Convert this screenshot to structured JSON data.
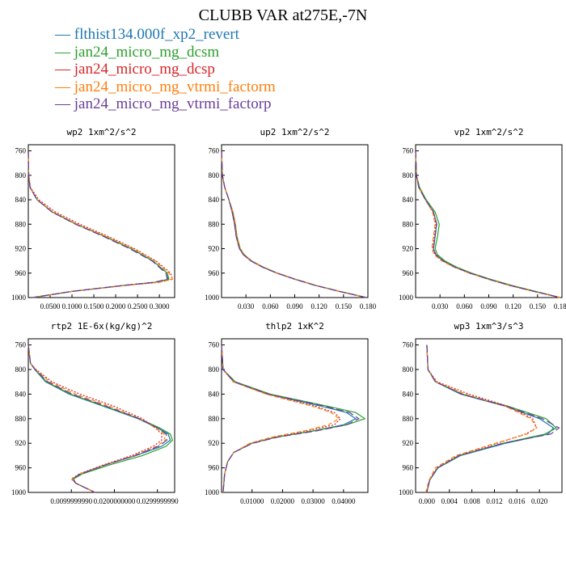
{
  "title": "CLUBB VAR at275E,-7N",
  "legend": [
    {
      "label": "flthist134.000f_xp2_revert",
      "color": "#1f77b4",
      "dash": "solid"
    },
    {
      "label": "jan24_micro_mg_dcsm",
      "color": "#2ca02c",
      "dash": "solid"
    },
    {
      "label": "jan24_micro_mg_dcsp",
      "color": "#d62728",
      "dash": "dotted"
    },
    {
      "label": "jan24_micro_mg_vtrmi_factorm",
      "color": "#ff7f0e",
      "dash": "dashed"
    },
    {
      "label": "jan24_micro_mg_vtrmi_factorp",
      "color": "#6a3d9a",
      "dash": "longdash"
    }
  ],
  "chart_data": [
    {
      "type": "line",
      "title": "wp2  1xm^2/s^2",
      "xlim": [
        0,
        0.335
      ],
      "ylim": [
        1000,
        750
      ],
      "y_reversed": true,
      "xticks": [
        0.05,
        0.1,
        0.15,
        0.2,
        0.25,
        0.3
      ],
      "xtick_labels": [
        "0.0500",
        "0.1000",
        "0.1500",
        "0.2000",
        "0.2500",
        "0.3000"
      ],
      "yticks": [
        760,
        800,
        840,
        880,
        920,
        960,
        1000
      ],
      "y": [
        760,
        800,
        820,
        840,
        860,
        880,
        900,
        920,
        940,
        960,
        970,
        975,
        980,
        990,
        1000
      ],
      "series": [
        {
          "values": [
            0,
            0.001,
            0.004,
            0.02,
            0.055,
            0.11,
            0.175,
            0.235,
            0.285,
            0.318,
            0.32,
            0.29,
            0.22,
            0.1,
            0.01
          ]
        },
        {
          "values": [
            0,
            0.001,
            0.004,
            0.02,
            0.055,
            0.11,
            0.175,
            0.235,
            0.285,
            0.318,
            0.322,
            0.29,
            0.22,
            0.1,
            0.01
          ]
        },
        {
          "values": [
            0,
            0.001,
            0.005,
            0.024,
            0.062,
            0.118,
            0.183,
            0.243,
            0.292,
            0.326,
            0.33,
            0.3,
            0.225,
            0.1,
            0.01
          ]
        },
        {
          "values": [
            0,
            0.001,
            0.004,
            0.021,
            0.057,
            0.112,
            0.178,
            0.24,
            0.29,
            0.322,
            0.33,
            0.3,
            0.225,
            0.1,
            0.01
          ]
        },
        {
          "values": [
            0,
            0.001,
            0.004,
            0.02,
            0.054,
            0.108,
            0.172,
            0.232,
            0.283,
            0.315,
            0.318,
            0.288,
            0.218,
            0.1,
            0.01
          ]
        }
      ]
    },
    {
      "type": "line",
      "title": "up2  1xm^2/s^2",
      "xlim": [
        0,
        0.18
      ],
      "ylim": [
        1000,
        750
      ],
      "y_reversed": true,
      "xticks": [
        0.03,
        0.06,
        0.09,
        0.12,
        0.15,
        0.18
      ],
      "xtick_labels": [
        "0.030",
        "0.060",
        "0.090",
        "0.120",
        "0.150",
        "0.180"
      ],
      "yticks": [
        760,
        800,
        840,
        880,
        920,
        960,
        1000
      ],
      "y": [
        760,
        800,
        820,
        840,
        860,
        880,
        900,
        920,
        930,
        940,
        950,
        960,
        970,
        980,
        990,
        1000
      ],
      "series": [
        {
          "values": [
            0,
            0.001,
            0.004,
            0.009,
            0.013,
            0.016,
            0.018,
            0.022,
            0.027,
            0.036,
            0.05,
            0.068,
            0.09,
            0.115,
            0.145,
            0.178
          ]
        },
        {
          "values": [
            0,
            0.001,
            0.004,
            0.009,
            0.014,
            0.017,
            0.019,
            0.023,
            0.028,
            0.037,
            0.051,
            0.069,
            0.091,
            0.116,
            0.146,
            0.178
          ]
        },
        {
          "values": [
            0,
            0.001,
            0.004,
            0.009,
            0.013,
            0.016,
            0.018,
            0.022,
            0.027,
            0.036,
            0.05,
            0.068,
            0.09,
            0.115,
            0.145,
            0.178
          ]
        },
        {
          "values": [
            0,
            0.001,
            0.004,
            0.009,
            0.014,
            0.017,
            0.019,
            0.023,
            0.028,
            0.037,
            0.051,
            0.069,
            0.091,
            0.116,
            0.146,
            0.178
          ]
        },
        {
          "values": [
            0,
            0.001,
            0.004,
            0.009,
            0.013,
            0.016,
            0.018,
            0.022,
            0.027,
            0.036,
            0.05,
            0.068,
            0.09,
            0.115,
            0.145,
            0.178
          ]
        }
      ]
    },
    {
      "type": "line",
      "title": "vp2  1xm^2/s^2",
      "xlim": [
        0,
        0.18
      ],
      "ylim": [
        1000,
        750
      ],
      "y_reversed": true,
      "xticks": [
        0.03,
        0.06,
        0.09,
        0.12,
        0.15,
        0.18
      ],
      "xtick_labels": [
        "0.030",
        "0.060",
        "0.090",
        "0.120",
        "0.150",
        "0.180"
      ],
      "yticks": [
        760,
        800,
        840,
        880,
        920,
        960,
        1000
      ],
      "y": [
        760,
        800,
        820,
        840,
        860,
        880,
        900,
        920,
        930,
        940,
        950,
        960,
        970,
        980,
        990,
        1000
      ],
      "series": [
        {
          "values": [
            0,
            0.001,
            0.004,
            0.012,
            0.022,
            0.026,
            0.024,
            0.022,
            0.025,
            0.034,
            0.048,
            0.067,
            0.09,
            0.116,
            0.146,
            0.178
          ]
        },
        {
          "values": [
            0,
            0.001,
            0.005,
            0.013,
            0.024,
            0.029,
            0.027,
            0.024,
            0.027,
            0.036,
            0.05,
            0.069,
            0.092,
            0.118,
            0.148,
            0.178
          ]
        },
        {
          "values": [
            0,
            0.001,
            0.004,
            0.012,
            0.022,
            0.025,
            0.023,
            0.021,
            0.024,
            0.033,
            0.047,
            0.066,
            0.089,
            0.115,
            0.145,
            0.178
          ]
        },
        {
          "values": [
            0,
            0.001,
            0.004,
            0.012,
            0.021,
            0.024,
            0.022,
            0.02,
            0.023,
            0.032,
            0.047,
            0.066,
            0.089,
            0.115,
            0.145,
            0.178
          ]
        },
        {
          "values": [
            0,
            0.001,
            0.004,
            0.012,
            0.022,
            0.026,
            0.024,
            0.022,
            0.025,
            0.034,
            0.048,
            0.067,
            0.09,
            0.116,
            0.146,
            0.178
          ]
        }
      ]
    },
    {
      "type": "line",
      "title": "rtp2  1E-6x(kg/kg)^2",
      "xlim": [
        0,
        0.034
      ],
      "ylim": [
        1000,
        750
      ],
      "y_reversed": true,
      "xticks": [
        0.01,
        0.02,
        0.03
      ],
      "xtick_labels": [
        "0.0099999990",
        "0.0200000000",
        "0.0299999990"
      ],
      "yticks": [
        760,
        800,
        840,
        880,
        920,
        960,
        1000
      ],
      "y": [
        760,
        790,
        800,
        820,
        840,
        860,
        880,
        895,
        905,
        915,
        925,
        940,
        955,
        970,
        978,
        985,
        995,
        1000
      ],
      "series": [
        {
          "values": [
            0,
            0.0005,
            0.0015,
            0.004,
            0.0095,
            0.0175,
            0.0255,
            0.03,
            0.0325,
            0.033,
            0.031,
            0.025,
            0.018,
            0.012,
            0.0105,
            0.011,
            0.014,
            0.0155
          ]
        },
        {
          "values": [
            0,
            0.0005,
            0.0016,
            0.0042,
            0.0098,
            0.0178,
            0.0258,
            0.0305,
            0.033,
            0.0335,
            0.032,
            0.0265,
            0.019,
            0.0125,
            0.0105,
            0.011,
            0.014,
            0.0155
          ]
        },
        {
          "values": [
            0,
            0.0005,
            0.0018,
            0.0055,
            0.012,
            0.02,
            0.0265,
            0.0295,
            0.031,
            0.031,
            0.029,
            0.024,
            0.0175,
            0.0118,
            0.01,
            0.011,
            0.014,
            0.0155
          ]
        },
        {
          "values": [
            0,
            0.0005,
            0.0017,
            0.005,
            0.011,
            0.019,
            0.026,
            0.0295,
            0.0315,
            0.0318,
            0.0298,
            0.0245,
            0.0178,
            0.012,
            0.0102,
            0.011,
            0.014,
            0.0155
          ]
        },
        {
          "values": [
            0,
            0.0005,
            0.0016,
            0.0045,
            0.0102,
            0.0182,
            0.0258,
            0.03,
            0.032,
            0.0322,
            0.0302,
            0.0248,
            0.018,
            0.0121,
            0.0103,
            0.011,
            0.014,
            0.0155
          ]
        }
      ]
    },
    {
      "type": "line",
      "title": "thlp2  1xK^2",
      "xlim": [
        0,
        0.048
      ],
      "ylim": [
        1000,
        750
      ],
      "y_reversed": true,
      "xticks": [
        0.01,
        0.02,
        0.03,
        0.04
      ],
      "xtick_labels": [
        "0.01000",
        "0.02000",
        "0.03000",
        "0.04000"
      ],
      "yticks": [
        760,
        800,
        840,
        880,
        920,
        960,
        1000
      ],
      "y": [
        760,
        800,
        820,
        840,
        860,
        870,
        880,
        890,
        900,
        910,
        920,
        935,
        950,
        970,
        1000
      ],
      "series": [
        {
          "values": [
            0,
            0.0005,
            0.004,
            0.015,
            0.033,
            0.041,
            0.044,
            0.04,
            0.03,
            0.018,
            0.01,
            0.004,
            0.002,
            0.001,
            0.0005
          ]
        },
        {
          "values": [
            0,
            0.0005,
            0.0045,
            0.016,
            0.035,
            0.044,
            0.047,
            0.041,
            0.03,
            0.018,
            0.01,
            0.004,
            0.002,
            0.001,
            0.0005
          ]
        },
        {
          "values": [
            0,
            0.0005,
            0.004,
            0.015,
            0.031,
            0.037,
            0.039,
            0.037,
            0.028,
            0.017,
            0.0095,
            0.004,
            0.002,
            0.001,
            0.0005
          ]
        },
        {
          "values": [
            0,
            0.0005,
            0.0038,
            0.0145,
            0.03,
            0.036,
            0.0385,
            0.035,
            0.027,
            0.0165,
            0.0093,
            0.004,
            0.002,
            0.001,
            0.0005
          ]
        },
        {
          "values": [
            0,
            0.0005,
            0.0042,
            0.0155,
            0.034,
            0.042,
            0.045,
            0.041,
            0.031,
            0.0185,
            0.0102,
            0.004,
            0.002,
            0.001,
            0.0005
          ]
        }
      ]
    },
    {
      "type": "line",
      "title": "wp3  1xm^3/s^3",
      "xlim": [
        -0.002,
        0.024
      ],
      "ylim": [
        1000,
        750
      ],
      "y_reversed": true,
      "xticks": [
        0,
        0.004,
        0.008,
        0.012,
        0.016,
        0.02
      ],
      "xtick_labels": [
        "0.000",
        "0.004",
        "0.008",
        "0.012",
        "0.016",
        "0.020"
      ],
      "yticks": [
        760,
        800,
        840,
        880,
        920,
        960,
        1000
      ],
      "y": [
        760,
        800,
        820,
        840,
        860,
        880,
        895,
        905,
        920,
        940,
        960,
        980,
        1000
      ],
      "series": [
        {
          "values": [
            0,
            0.0002,
            0.0015,
            0.006,
            0.014,
            0.02,
            0.0225,
            0.0215,
            0.014,
            0.006,
            0.002,
            0.0005,
            0
          ]
        },
        {
          "values": [
            0,
            0.0002,
            0.0016,
            0.0063,
            0.0145,
            0.0212,
            0.023,
            0.021,
            0.0135,
            0.0058,
            0.0019,
            0.0005,
            0
          ]
        },
        {
          "values": [
            0,
            0.0002,
            0.0018,
            0.0075,
            0.0145,
            0.0188,
            0.0195,
            0.0175,
            0.0125,
            0.0055,
            0.0018,
            0.0005,
            0
          ]
        },
        {
          "values": [
            0,
            0.0002,
            0.0016,
            0.0068,
            0.014,
            0.0185,
            0.0195,
            0.0178,
            0.0122,
            0.0052,
            0.0015,
            0.0004,
            -0.0002
          ]
        },
        {
          "values": [
            0,
            0.0002,
            0.0015,
            0.0062,
            0.0142,
            0.0205,
            0.0235,
            0.022,
            0.0135,
            0.0057,
            0.0019,
            0.0005,
            0
          ]
        }
      ]
    }
  ]
}
